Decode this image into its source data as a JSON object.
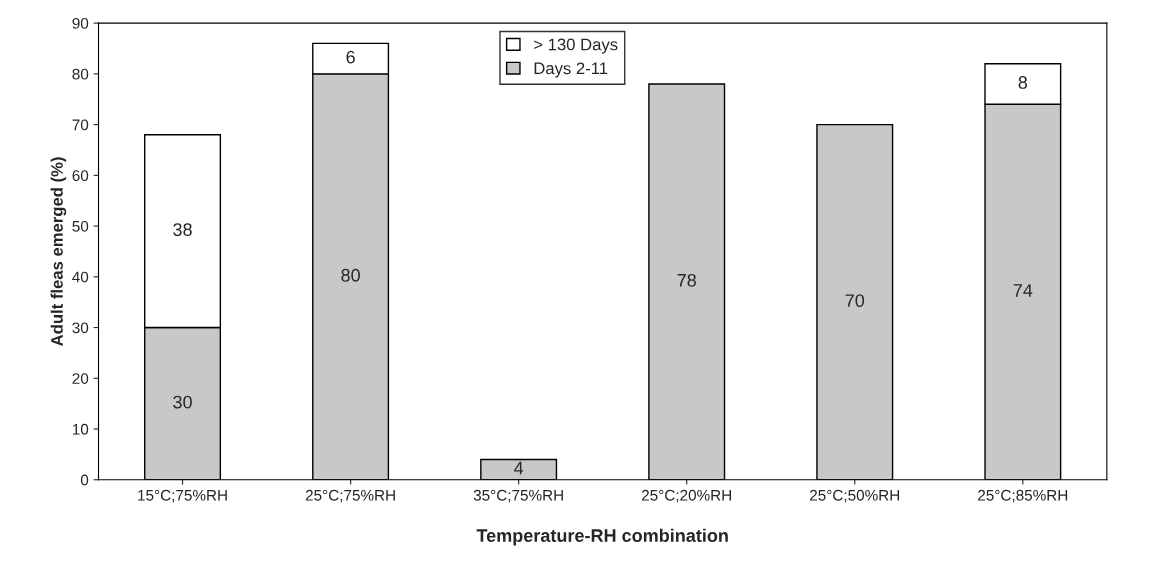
{
  "chart_data": {
    "type": "bar",
    "stacked": true,
    "xlabel": "Temperature-RH combination",
    "ylabel": "Adult fleas emerged (%)",
    "categories": [
      "15°C;75%RH",
      "25°C;75%RH",
      "35°C;75%RH",
      "25°C;20%RH",
      "25°C;50%RH",
      "25°C;85%RH"
    ],
    "series": [
      {
        "name": "Days 2-11",
        "color": "#c8c8c8",
        "values": [
          30,
          80,
          4,
          78,
          70,
          74
        ]
      },
      {
        "name": "> 130 Days",
        "color": "#ffffff",
        "values": [
          38,
          6,
          null,
          null,
          null,
          8
        ]
      }
    ],
    "ylim": [
      0,
      90
    ],
    "yticks": [
      0,
      10,
      20,
      30,
      40,
      50,
      60,
      70,
      80,
      90
    ],
    "data_labels": true,
    "grid": false,
    "legend": "top"
  }
}
